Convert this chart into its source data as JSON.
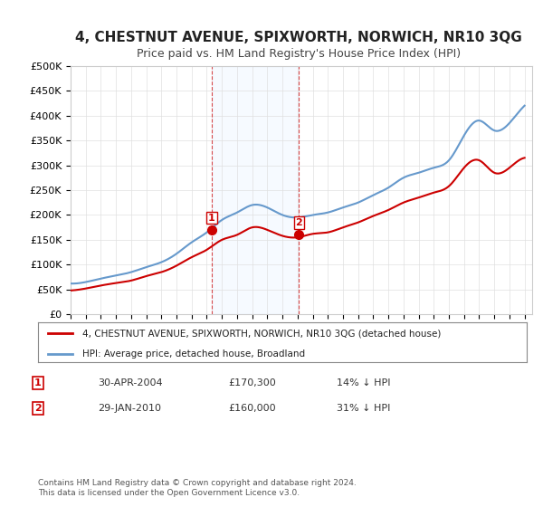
{
  "title": "4, CHESTNUT AVENUE, SPIXWORTH, NORWICH, NR10 3QG",
  "subtitle": "Price paid vs. HM Land Registry's House Price Index (HPI)",
  "title_fontsize": 11,
  "subtitle_fontsize": 9,
  "xlabel": "",
  "ylabel": "",
  "ylim": [
    0,
    500000
  ],
  "yticks": [
    0,
    50000,
    100000,
    150000,
    200000,
    250000,
    300000,
    350000,
    400000,
    450000,
    500000
  ],
  "ytick_labels": [
    "£0",
    "£50K",
    "£100K",
    "£150K",
    "£200K",
    "£250K",
    "£300K",
    "£350K",
    "£400K",
    "£450K",
    "£500K"
  ],
  "background_color": "#ffffff",
  "plot_background": "#ffffff",
  "grid_color": "#e0e0e0",
  "sale1_date": 2004.33,
  "sale1_price": 170300,
  "sale2_date": 2010.08,
  "sale2_price": 160000,
  "shade_color": "#ddeeff",
  "line_red": "#cc0000",
  "line_blue": "#6699cc",
  "marker_color_red": "#cc0000",
  "legend_label_red": "4, CHESTNUT AVENUE, SPIXWORTH, NORWICH, NR10 3QG (detached house)",
  "legend_label_blue": "HPI: Average price, detached house, Broadland",
  "info1_label": "1",
  "info1_date": "30-APR-2004",
  "info1_price": "£170,300",
  "info1_hpi": "14% ↓ HPI",
  "info2_label": "2",
  "info2_date": "29-JAN-2010",
  "info2_price": "£160,000",
  "info2_hpi": "31% ↓ HPI",
  "footnote": "Contains HM Land Registry data © Crown copyright and database right 2024.\nThis data is licensed under the Open Government Licence v3.0.",
  "hpi_years": [
    1995,
    1996,
    1997,
    1998,
    1999,
    2000,
    2001,
    2002,
    2003,
    2004,
    2005,
    2006,
    2007,
    2008,
    2009,
    2010,
    2011,
    2012,
    2013,
    2014,
    2015,
    2016,
    2017,
    2018,
    2019,
    2020,
    2021,
    2022,
    2023,
    2024,
    2025
  ],
  "hpi_values": [
    62000,
    65000,
    72000,
    78000,
    85000,
    95000,
    105000,
    122000,
    145000,
    165000,
    190000,
    205000,
    220000,
    215000,
    200000,
    195000,
    200000,
    205000,
    215000,
    225000,
    240000,
    255000,
    275000,
    285000,
    295000,
    310000,
    360000,
    390000,
    370000,
    385000,
    420000
  ],
  "price_years": [
    1995,
    1996,
    1997,
    1998,
    1999,
    2000,
    2001,
    2002,
    2003,
    2004,
    2005,
    2006,
    2007,
    2008,
    2009,
    2010,
    2011,
    2012,
    2013,
    2014,
    2015,
    2016,
    2017,
    2018,
    2019,
    2020,
    2021,
    2022,
    2023,
    2024,
    2025
  ],
  "price_values": [
    48000,
    52000,
    58000,
    63000,
    68000,
    77000,
    85000,
    98000,
    115000,
    130000,
    150000,
    160000,
    175000,
    170000,
    158000,
    155000,
    162000,
    165000,
    175000,
    185000,
    198000,
    210000,
    225000,
    235000,
    245000,
    258000,
    295000,
    310000,
    285000,
    295000,
    315000
  ]
}
